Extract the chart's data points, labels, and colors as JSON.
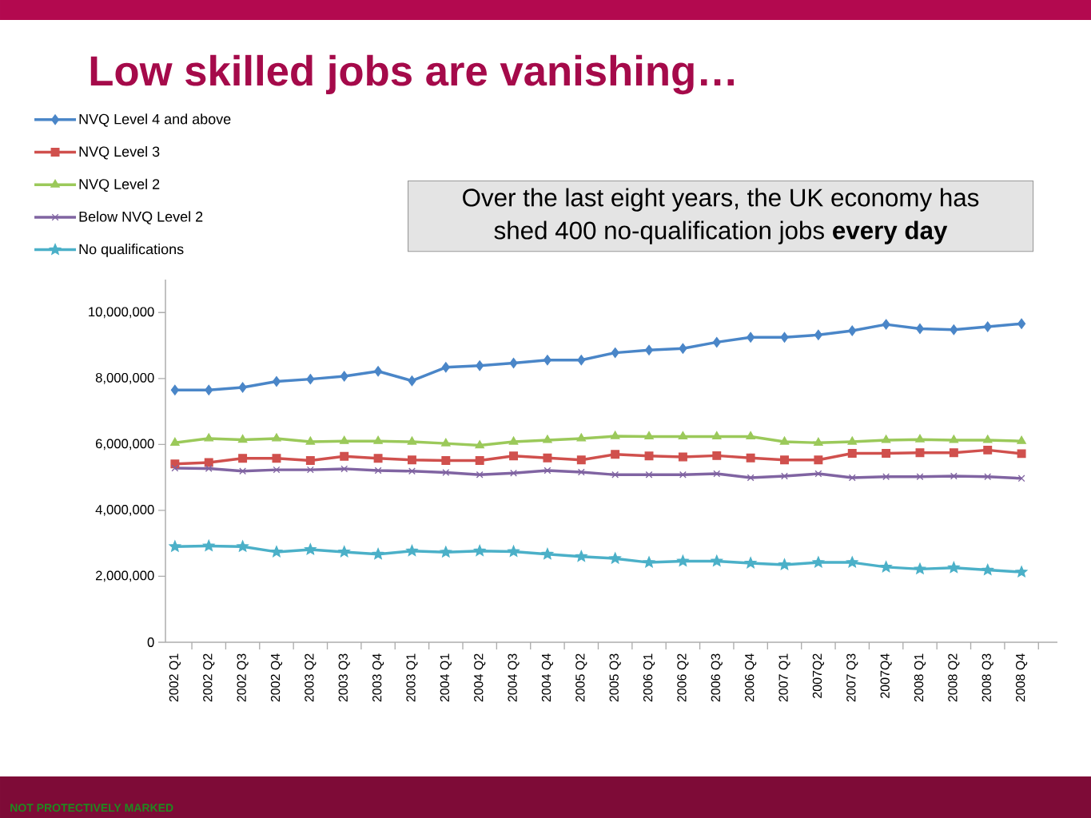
{
  "chart_data": {
    "type": "line",
    "title": "Low skilled jobs are vanishing…",
    "annotations": [
      "Over the last eight years, the UK economy has shed 400 no-qualification jobs **every day**",
      "NOT PROTECTIVELY MARKED"
    ],
    "categories": [
      "2002 Q1",
      "2002 Q2",
      "2002 Q3",
      "2002 Q4",
      "2003 Q2",
      "2003 Q3",
      "2003 Q4",
      "2003 Q1",
      "2004 Q1",
      "2004 Q2",
      "2004 Q3",
      "2004 Q4",
      "2005 Q2",
      "2005 Q3",
      "2006 Q1",
      "2006 Q2",
      "2006 Q3",
      "2006 Q4",
      "2007 Q1",
      "2007Q2",
      "2007 Q3",
      "2007Q4",
      "2008 Q1",
      "2008 Q2",
      "2008 Q3",
      "2008 Q4"
    ],
    "series": [
      {
        "name": "NVQ Level 4 and above",
        "color": "#4a86c8",
        "marker": "diamond",
        "values": [
          7650000,
          7650000,
          7730000,
          7910000,
          7980000,
          8070000,
          8220000,
          7930000,
          8340000,
          8390000,
          8470000,
          8560000,
          8560000,
          8780000,
          8860000,
          8910000,
          9100000,
          9250000,
          9250000,
          9320000,
          9450000,
          9640000,
          9510000,
          9480000,
          9570000,
          9660000
        ]
      },
      {
        "name": "NVQ Level 3",
        "color": "#d0504d",
        "marker": "square",
        "values": [
          5410000,
          5450000,
          5580000,
          5580000,
          5510000,
          5640000,
          5580000,
          5530000,
          5510000,
          5510000,
          5650000,
          5590000,
          5530000,
          5700000,
          5650000,
          5620000,
          5660000,
          5590000,
          5530000,
          5530000,
          5730000,
          5730000,
          5750000,
          5750000,
          5830000,
          5720000
        ]
      },
      {
        "name": "NVQ Level 2",
        "color": "#9bc95a",
        "marker": "triangle",
        "values": [
          6050000,
          6180000,
          6140000,
          6180000,
          6080000,
          6100000,
          6100000,
          6080000,
          6030000,
          5970000,
          6080000,
          6130000,
          6180000,
          6250000,
          6240000,
          6240000,
          6240000,
          6240000,
          6080000,
          6050000,
          6080000,
          6130000,
          6150000,
          6130000,
          6130000,
          6100000
        ]
      },
      {
        "name": "Below NVQ Level 2",
        "color": "#8064a2",
        "marker": "cross",
        "values": [
          5280000,
          5270000,
          5190000,
          5230000,
          5230000,
          5260000,
          5210000,
          5190000,
          5150000,
          5080000,
          5130000,
          5210000,
          5160000,
          5080000,
          5080000,
          5080000,
          5110000,
          4990000,
          5040000,
          5110000,
          4990000,
          5020000,
          5020000,
          5040000,
          5020000,
          4970000
        ]
      },
      {
        "name": "No qualifications",
        "color": "#4bb0c8",
        "marker": "star",
        "values": [
          2900000,
          2920000,
          2900000,
          2740000,
          2810000,
          2740000,
          2670000,
          2770000,
          2730000,
          2770000,
          2750000,
          2670000,
          2600000,
          2540000,
          2420000,
          2460000,
          2460000,
          2400000,
          2350000,
          2420000,
          2420000,
          2280000,
          2220000,
          2260000,
          2190000,
          2130000
        ]
      }
    ],
    "ylim": [
      0,
      11000000
    ],
    "yticks": [
      0,
      {
        "value": 2000000,
        "label": "2,000,000"
      },
      {
        "value": 4000000,
        "label": "4,000,000"
      },
      {
        "value": 6000000,
        "label": "6,000,000"
      },
      {
        "value": 8000000,
        "label": "8,000,000"
      },
      {
        "value": 10000000,
        "label": "10,000,000"
      }
    ],
    "legend": "top left"
  }
}
